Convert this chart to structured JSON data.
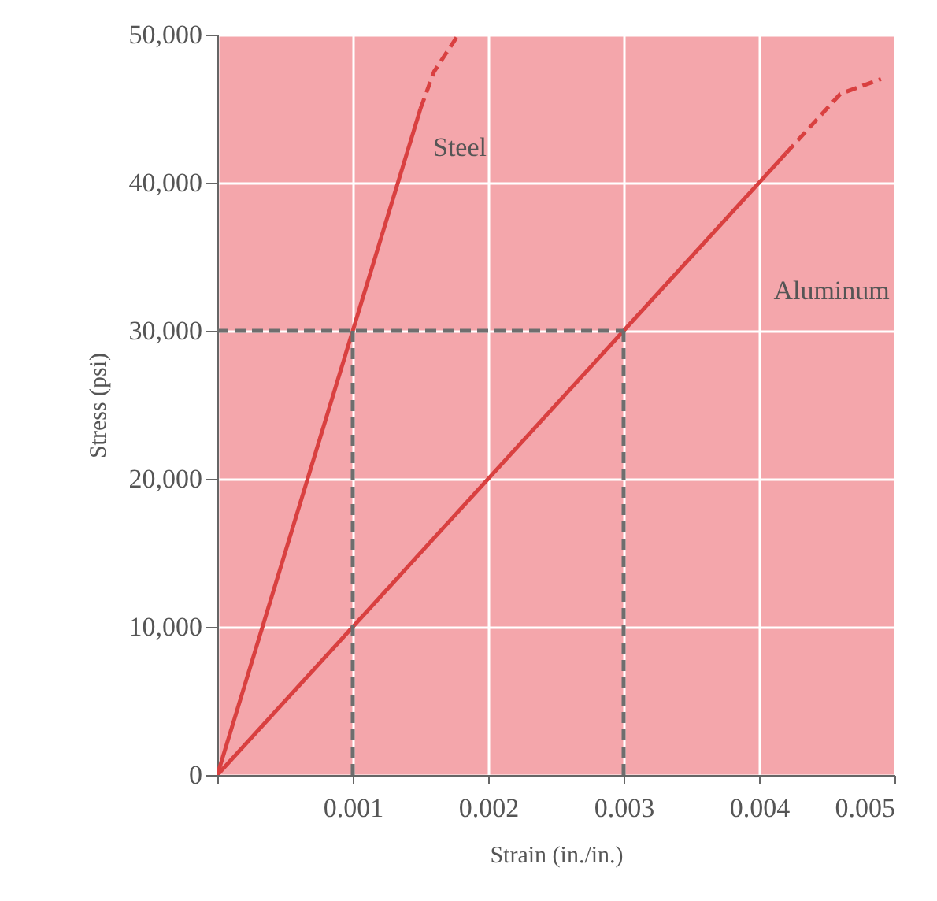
{
  "chart_data": {
    "type": "line",
    "xlabel": "Strain (in./in.)",
    "ylabel": "Stress (psi)",
    "xlim": [
      0,
      0.005
    ],
    "ylim": [
      0,
      50000
    ],
    "xticks": [
      {
        "value": 0,
        "label": null
      },
      0.001,
      0.002,
      0.003,
      0.004,
      0.005
    ],
    "yticks": [
      0,
      {
        "value": 10000,
        "label": "10,000"
      },
      {
        "value": 20000,
        "label": "20,000"
      },
      {
        "value": 30000,
        "label": "30,000"
      },
      {
        "value": 40000,
        "label": "40,000"
      },
      {
        "value": 50000,
        "label": "50,000"
      }
    ],
    "grid": true,
    "marker": "none",
    "series": [
      {
        "name": "Steel",
        "color": "#d94040",
        "line_style": "solid",
        "x": [
          0,
          0.001,
          0.0015
        ],
        "values": [
          0,
          30000,
          45000
        ]
      },
      {
        "color": "#d94040",
        "line_style": "dashed",
        "x": [
          0.0015,
          0.0016,
          0.00178
        ],
        "values": [
          45000,
          47500,
          50000
        ]
      },
      {
        "name": "Aluminum",
        "color": "#d94040",
        "line_style": "solid",
        "x": [
          0,
          0.003,
          0.0042
        ],
        "values": [
          0,
          30000,
          42000
        ]
      },
      {
        "color": "#d94040",
        "line_style": "dashed",
        "x": [
          0.0042,
          0.0046,
          0.0049
        ],
        "values": [
          42000,
          46000,
          47000
        ]
      },
      {
        "color": "#6e6e6e",
        "line_style": "dashed",
        "x": [
          0,
          0.003
        ],
        "values": [
          30000,
          30000
        ]
      },
      {
        "color": "#6e6e6e",
        "line_style": "dashed",
        "x": [
          0.001,
          0.001
        ],
        "values": [
          30000,
          0
        ]
      },
      {
        "color": "#6e6e6e",
        "line_style": "dashed",
        "x": [
          0.003,
          0.003
        ],
        "values": [
          30000,
          0
        ]
      }
    ]
  }
}
